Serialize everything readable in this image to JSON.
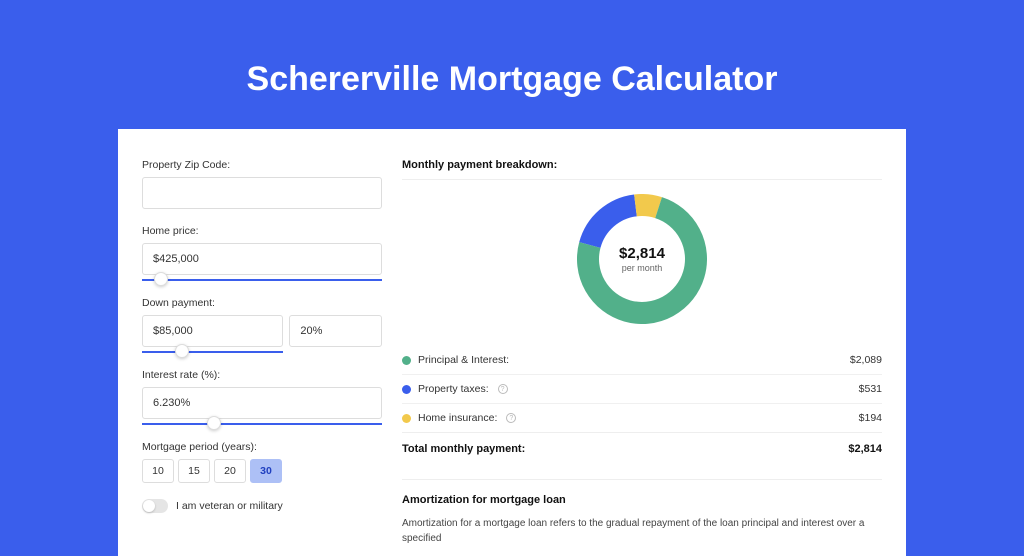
{
  "title": "Schererville Mortgage Calculator",
  "form": {
    "zip_label": "Property Zip Code:",
    "zip_value": "",
    "home_price_label": "Home price:",
    "home_price_value": "$425,000",
    "home_price_slider_pct": 8,
    "down_payment_label": "Down payment:",
    "down_payment_value": "$85,000",
    "down_payment_pct_value": "20%",
    "down_payment_slider_pct": 28,
    "down_payment_slider_on_first_input": true,
    "interest_label": "Interest rate (%):",
    "interest_value": "6.230%",
    "interest_slider_pct": 30,
    "period_label": "Mortgage period (years):",
    "period_options": [
      "10",
      "15",
      "20",
      "30"
    ],
    "period_active": "30",
    "veteran_label": "I am veteran or military",
    "veteran_on": false
  },
  "breakdown": {
    "title": "Monthly payment breakdown:",
    "center_amount": "$2,814",
    "center_sub": "per month",
    "items": [
      {
        "label": "Principal & Interest:",
        "value": "$2,089",
        "color": "#52b08a",
        "info": false,
        "pct": 74.2
      },
      {
        "label": "Property taxes:",
        "value": "$531",
        "color": "#3a5eec",
        "info": true,
        "pct": 18.9
      },
      {
        "label": "Home insurance:",
        "value": "$194",
        "color": "#f2c94c",
        "info": true,
        "pct": 6.9
      }
    ],
    "total_label": "Total monthly payment:",
    "total_value": "$2,814"
  },
  "amort": {
    "title": "Amortization for mortgage loan",
    "text": "Amortization for a mortgage loan refers to the gradual repayment of the loan principal and interest over a specified"
  },
  "colors": {
    "page_bg": "#3a5eec",
    "panel_bg": "#ffffff",
    "slider": "#3a5eec",
    "active_period_bg": "#adc0f6"
  },
  "donut": {
    "thickness": 22,
    "radius": 65
  }
}
